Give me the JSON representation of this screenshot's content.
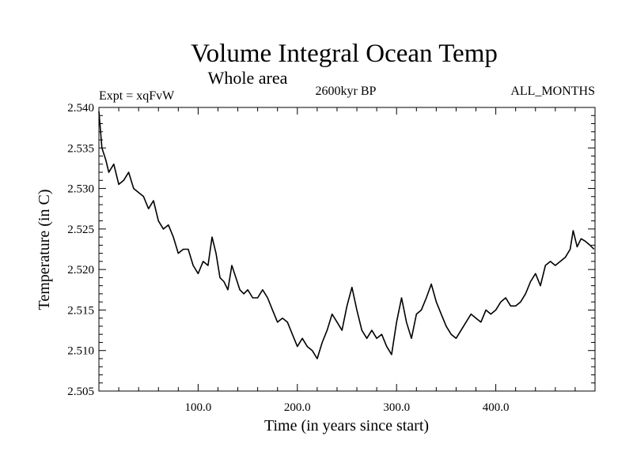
{
  "chart_data": {
    "type": "line",
    "title": "Volume Integral Ocean Temp",
    "subtitle": "Whole area",
    "experiment_label": "Expt = xqFvW",
    "period_label": "2600kyr BP",
    "months_label": "ALL_MONTHS",
    "xlabel": "Time (in years since start)",
    "ylabel": "Temperature (in C)",
    "xlim": [
      0,
      500
    ],
    "ylim": [
      2.505,
      2.54
    ],
    "grid": false,
    "x_tick_values": [
      100,
      200,
      300,
      400
    ],
    "x_tick_labels": [
      "100.0",
      "200.0",
      "300.0",
      "400.0"
    ],
    "y_tick_values": [
      2.505,
      2.51,
      2.515,
      2.52,
      2.525,
      2.53,
      2.535,
      2.54
    ],
    "y_tick_labels": [
      "2.505",
      "2.510",
      "2.515",
      "2.520",
      "2.525",
      "2.530",
      "2.535",
      "2.540"
    ],
    "series": [
      {
        "name": "Volume integral ocean temperature",
        "color": "#000000",
        "x": [
          0,
          3,
          7,
          10,
          15,
          20,
          25,
          30,
          35,
          40,
          45,
          50,
          55,
          60,
          65,
          70,
          75,
          80,
          85,
          90,
          95,
          100,
          105,
          110,
          114,
          118,
          122,
          126,
          130,
          134,
          138,
          142,
          146,
          150,
          155,
          160,
          165,
          170,
          175,
          180,
          185,
          190,
          195,
          200,
          205,
          210,
          215,
          220,
          225,
          230,
          235,
          240,
          245,
          250,
          255,
          260,
          265,
          270,
          275,
          280,
          285,
          290,
          295,
          300,
          305,
          310,
          315,
          320,
          325,
          330,
          335,
          340,
          345,
          350,
          355,
          360,
          365,
          370,
          375,
          380,
          385,
          390,
          395,
          400,
          405,
          410,
          415,
          420,
          425,
          430,
          435,
          440,
          445,
          450,
          455,
          460,
          465,
          470,
          475,
          478,
          482,
          486,
          490,
          495,
          499
        ],
        "y": [
          2.5395,
          2.535,
          2.5335,
          2.532,
          2.533,
          2.5305,
          2.531,
          2.532,
          2.53,
          2.5295,
          2.529,
          2.5275,
          2.5285,
          2.526,
          2.525,
          2.5255,
          2.524,
          2.522,
          2.5225,
          2.5225,
          2.5205,
          2.5195,
          2.521,
          2.5205,
          2.524,
          2.522,
          2.519,
          2.5185,
          2.5175,
          2.5205,
          2.519,
          2.5175,
          2.517,
          2.5175,
          2.5165,
          2.5165,
          2.5175,
          2.5165,
          2.515,
          2.5135,
          2.514,
          2.5135,
          2.512,
          2.5105,
          2.5115,
          2.5105,
          2.51,
          2.509,
          2.511,
          2.5125,
          2.5145,
          2.5135,
          2.5125,
          2.5155,
          2.5178,
          2.515,
          2.5125,
          2.5115,
          2.5125,
          2.5115,
          2.512,
          2.5105,
          2.5095,
          2.5135,
          2.5165,
          2.5135,
          2.5115,
          2.5145,
          2.515,
          2.5165,
          2.5182,
          2.516,
          2.5145,
          2.513,
          2.512,
          2.5115,
          2.5125,
          2.5135,
          2.5145,
          2.514,
          2.5135,
          2.515,
          2.5145,
          2.515,
          2.516,
          2.5165,
          2.5155,
          2.5155,
          2.516,
          2.517,
          2.5185,
          2.5195,
          2.518,
          2.5205,
          2.521,
          2.5205,
          2.521,
          2.5215,
          2.5225,
          2.5248,
          2.5228,
          2.5238,
          2.5235,
          2.523,
          2.5225
        ]
      }
    ]
  }
}
